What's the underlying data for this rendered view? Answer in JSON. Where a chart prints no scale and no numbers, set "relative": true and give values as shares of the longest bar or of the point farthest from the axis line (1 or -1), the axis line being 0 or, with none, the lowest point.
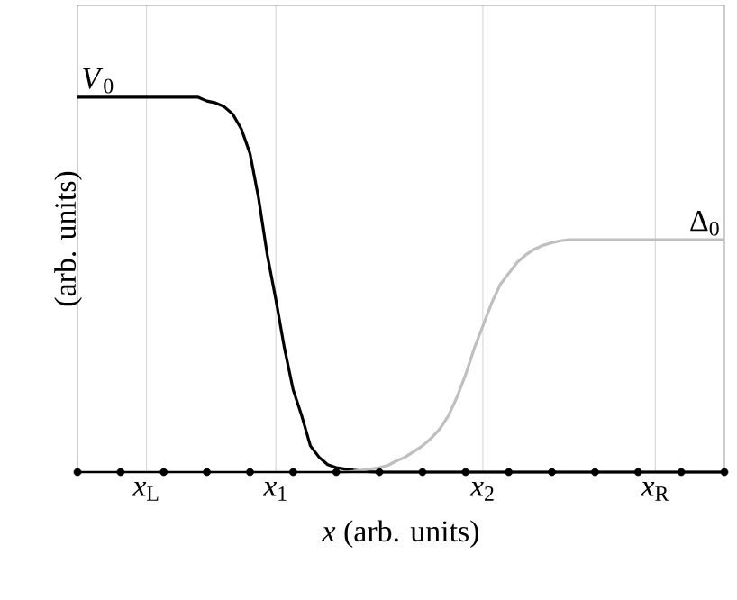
{
  "chart_data": {
    "type": "line",
    "relative": true,
    "xlabel": "*x* (arb. units)",
    "ylabel": "(arb. units)",
    "categories": [
      null,
      null,
      null,
      null,
      null,
      null,
      null,
      null,
      "*x*$_{L}$",
      null,
      null,
      null,
      null,
      null,
      null,
      null,
      null,
      null,
      null,
      null,
      null,
      null,
      null,
      "*x*$_{1}$",
      null,
      null,
      null,
      null,
      null,
      null,
      null,
      null,
      null,
      null,
      null,
      null,
      null,
      null,
      null,
      null,
      null,
      null,
      null,
      null,
      null,
      null,
      null,
      "*x*$_{2}$",
      null,
      null,
      null,
      null,
      null,
      null,
      null,
      null,
      null,
      null,
      null,
      null,
      null,
      null,
      null,
      null,
      null,
      null,
      null,
      "*x*$_{R}$",
      null,
      null,
      null,
      null,
      null,
      null,
      null,
      null
    ],
    "grid": "x",
    "series": [
      {
        "name": "*V*$_{0}$",
        "color": "#000000",
        "marker": "none",
        "values": [
          1,
          1,
          1,
          1,
          1,
          1,
          1,
          1,
          1,
          1,
          1,
          1,
          1,
          1,
          1,
          0.99,
          0.985,
          0.975,
          0.955,
          0.915,
          0.85,
          0.73,
          0.58,
          0.46,
          0.33,
          0.22,
          0.15,
          0.07,
          0.04,
          0.02,
          0.012,
          0.008,
          0.005,
          0.003,
          0.001,
          0,
          0,
          0,
          0,
          0,
          0,
          0,
          0,
          0,
          0,
          0,
          0,
          0,
          0,
          0,
          0,
          0,
          0,
          0,
          0,
          0,
          0,
          0,
          0,
          0,
          0,
          0,
          0,
          0,
          0,
          0,
          0,
          0,
          0,
          0,
          0,
          0,
          0,
          0,
          0,
          0
        ]
      },
      {
        "name": "Δ$_{0}$",
        "color": "#bfbfbf",
        "marker": "none",
        "values": [
          null,
          null,
          null,
          null,
          null,
          null,
          null,
          null,
          null,
          null,
          null,
          null,
          null,
          null,
          null,
          null,
          null,
          null,
          null,
          null,
          null,
          null,
          null,
          null,
          null,
          null,
          null,
          null,
          null,
          null,
          0,
          0,
          0.002,
          0.005,
          0.008,
          0.012,
          0.018,
          0.03,
          0.04,
          0.055,
          0.07,
          0.09,
          0.115,
          0.15,
          0.2,
          0.26,
          0.33,
          0.39,
          0.45,
          0.5,
          0.53,
          0.56,
          0.58,
          0.595,
          0.605,
          0.612,
          0.617,
          0.62,
          0.62,
          0.62,
          0.62,
          0.62,
          0.62,
          0.62,
          0.62,
          0.62,
          0.62,
          0.62,
          0.62,
          0.62,
          0.62,
          0.62,
          0.62,
          0.62,
          0.62,
          0.62
        ]
      },
      {
        "type": "scatter",
        "color": "#000000",
        "marker": "circle",
        "values": [
          0,
          null,
          null,
          null,
          null,
          0,
          null,
          null,
          null,
          null,
          0,
          null,
          null,
          null,
          null,
          0,
          null,
          null,
          null,
          null,
          0,
          null,
          null,
          null,
          null,
          0,
          null,
          null,
          null,
          null,
          0,
          null,
          null,
          null,
          null,
          0,
          null,
          null,
          null,
          null,
          0,
          null,
          null,
          null,
          null,
          0,
          null,
          null,
          null,
          null,
          0,
          null,
          null,
          null,
          null,
          0,
          null,
          null,
          null,
          null,
          0,
          null,
          null,
          null,
          null,
          0,
          null,
          null,
          null,
          null,
          0,
          null,
          null,
          null,
          null,
          0
        ]
      }
    ]
  }
}
